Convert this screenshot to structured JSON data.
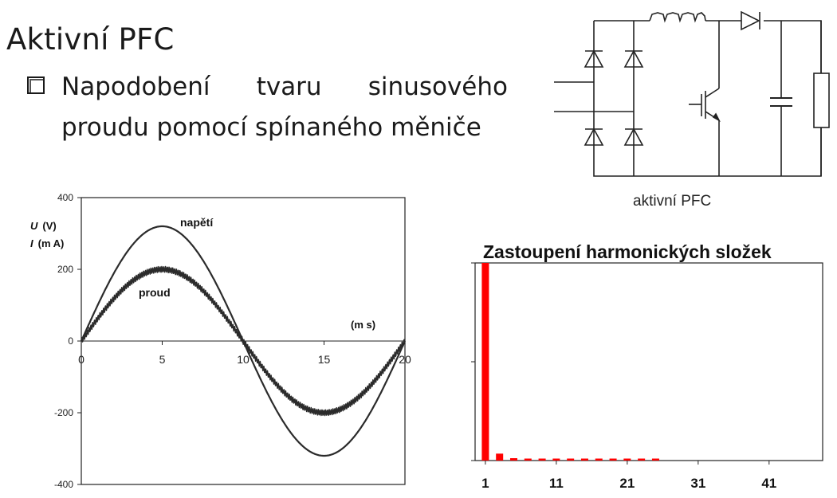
{
  "slide": {
    "title": "Aktivní PFC",
    "bullet_words": [
      "Napodobení",
      "tvaru",
      "sinusového"
    ],
    "bullet_line2": "proudu pomocí spínaného měniče"
  },
  "circuit": {
    "caption": "aktivní PFC"
  },
  "chart_data": [
    {
      "type": "line",
      "title": "",
      "xlabel": "(m s)",
      "ylabel_u": "U",
      "ylabel_u_unit": "(V)",
      "ylabel_i": "I",
      "ylabel_i_unit": "(m A)",
      "xlim": [
        0,
        20
      ],
      "ylim": [
        -400,
        400
      ],
      "x_ticks": [
        "0",
        "5",
        "10",
        "15",
        "20"
      ],
      "y_ticks": [
        "400",
        "200",
        "0",
        "-200",
        "-400"
      ],
      "series": [
        {
          "name": "napětí",
          "amplitude": 320,
          "period_ms": 20,
          "ripple": 0
        },
        {
          "name": "proud",
          "amplitude": 200,
          "period_ms": 20,
          "ripple": 8
        }
      ]
    },
    {
      "type": "bar",
      "title": "Zastoupení harmonických složek",
      "x_ticks": [
        "1",
        "11",
        "21",
        "31",
        "41"
      ],
      "harmonics": [
        1,
        3,
        5,
        7,
        9,
        11,
        13,
        15,
        17,
        19,
        21,
        23,
        25
      ],
      "values": [
        100,
        3.5,
        1.2,
        1.0,
        1.0,
        1.0,
        1.0,
        1.0,
        1.0,
        1.0,
        1.0,
        1.0,
        1.0
      ],
      "ylim": [
        0,
        100
      ],
      "bar_color": "#ff0000"
    }
  ]
}
